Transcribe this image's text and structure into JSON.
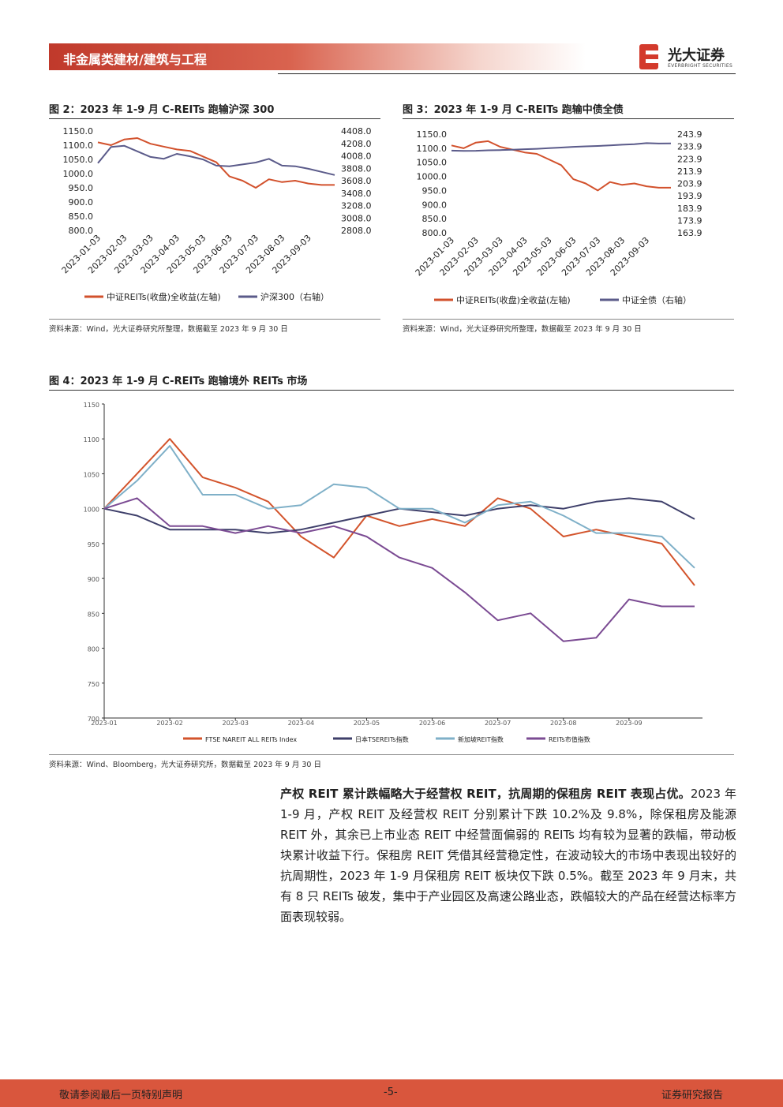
{
  "header": {
    "section": "非金属类建材/建筑与工程",
    "brand": "光大证券",
    "brand_en": "EVERBRIGHT SECURITIES"
  },
  "chart_data": [
    {
      "type": "line",
      "title": "图 2：2023 年 1-9 月 C-REITs 跑输沪深 300",
      "source": "资料来源：Wind，光大证券研究所整理，数据截至 2023 年 9 月 30 日",
      "categories": [
        "2023-01-03",
        null,
        "2023-02-03",
        null,
        "2023-03-03",
        null,
        "2023-04-03",
        null,
        "2023-05-03",
        null,
        "2023-06-03",
        null,
        "2023-07-03",
        null,
        "2023-08-03",
        null,
        "2023-09-03",
        null,
        null
      ],
      "series": [
        {
          "name": "中证REITs(收盘)全收益(左轴)",
          "color": "#d2512c",
          "values": [
            1110,
            1100,
            1120,
            1125,
            1105,
            1095,
            1085,
            1080,
            1060,
            1040,
            990,
            975,
            950,
            980,
            970,
            975,
            965,
            960,
            960
          ]
        },
        {
          "name": "沪深300（右轴）",
          "color": "#5b5b8a",
          "axis": "y2",
          "values": [
            3890,
            4150,
            4170,
            4080,
            3990,
            3960,
            4040,
            4000,
            3950,
            3850,
            3840,
            3870,
            3900,
            3960,
            3850,
            3840,
            3800,
            3750,
            3700
          ]
        }
      ],
      "ylim": [
        800,
        1150
      ],
      "yticks": [
        {
          "value": 800,
          "label": "800.0"
        },
        {
          "value": 850,
          "label": "850.0"
        },
        {
          "value": 900,
          "label": "900.0"
        },
        {
          "value": 950,
          "label": "950.0"
        },
        {
          "value": 1000,
          "label": "1000.0"
        },
        {
          "value": 1050,
          "label": "1050.0"
        },
        {
          "value": 1100,
          "label": "1100.0"
        },
        {
          "value": 1150,
          "label": "1150.0"
        }
      ],
      "y2lim": [
        2808,
        4408
      ],
      "y2ticks": [
        {
          "value": 2808,
          "label": "2808.0"
        },
        {
          "value": 3008,
          "label": "3008.0"
        },
        {
          "value": 3208,
          "label": "3208.0"
        },
        {
          "value": 3408,
          "label": "3408.0"
        },
        {
          "value": 3608,
          "label": "3608.0"
        },
        {
          "value": 3808,
          "label": "3808.0"
        },
        {
          "value": 4008,
          "label": "4008.0"
        },
        {
          "value": 4208,
          "label": "4208.0"
        },
        {
          "value": 4408,
          "label": "4408.0"
        }
      ],
      "grid": false
    },
    {
      "type": "line",
      "title": "图 3：2023 年 1-9 月 C-REITs 跑输中债全债",
      "source": "资料来源：Wind，光大证券研究所整理，数据截至 2023 年 9 月 30 日",
      "categories": [
        "2023-01-03",
        null,
        "2023-02-03",
        null,
        "2023-03-03",
        null,
        "2023-04-03",
        null,
        "2023-05-03",
        null,
        "2023-06-03",
        null,
        "2023-07-03",
        null,
        "2023-08-03",
        null,
        "2023-09-03",
        null,
        null
      ],
      "series": [
        {
          "name": "中证REITs(收盘)全收益(左轴)",
          "color": "#d2512c",
          "values": [
            1110,
            1100,
            1120,
            1125,
            1105,
            1095,
            1085,
            1080,
            1060,
            1040,
            990,
            975,
            950,
            980,
            970,
            975,
            965,
            960,
            960
          ]
        },
        {
          "name": "中证全债（右轴）",
          "color": "#5b5b8a",
          "axis": "y2",
          "values": [
            230.5,
            230.3,
            230.4,
            230.8,
            231.0,
            231.3,
            231.7,
            232.0,
            232.5,
            233.0,
            233.6,
            234.0,
            234.3,
            234.8,
            235.3,
            235.8,
            236.6,
            236.3,
            236.4
          ]
        }
      ],
      "ylim": [
        800,
        1150
      ],
      "yticks": [
        {
          "value": 800,
          "label": "800.0"
        },
        {
          "value": 850,
          "label": "850.0"
        },
        {
          "value": 900,
          "label": "900.0"
        },
        {
          "value": 950,
          "label": "950.0"
        },
        {
          "value": 1000,
          "label": "1000.0"
        },
        {
          "value": 1050,
          "label": "1050.0"
        },
        {
          "value": 1100,
          "label": "1100.0"
        },
        {
          "value": 1150,
          "label": "1150.0"
        }
      ],
      "y2lim": [
        163.9,
        243.9
      ],
      "y2ticks": [
        163.9,
        173.9,
        183.9,
        193.9,
        203.9,
        213.9,
        223.9,
        233.9,
        243.9
      ],
      "grid": false
    },
    {
      "type": "line",
      "title": "图 4：2023 年 1-9 月 C-REITs 跑输境外 REITs 市场",
      "source": "资料来源：Wind、Bloomberg，光大证券研究所，数据截至 2023 年 9 月 30 日",
      "categories": [
        "2023-01",
        null,
        "2023-02",
        null,
        "2023-03",
        null,
        "2023-04",
        null,
        "2023-05",
        null,
        "2023-06",
        null,
        "2023-07",
        null,
        "2023-08",
        null,
        "2023-09",
        null,
        null
      ],
      "series": [
        {
          "name": "FTSE NAREIT ALL REITs Index",
          "color": "#d3542c",
          "values": [
            1000,
            1050,
            1100,
            1045,
            1030,
            1010,
            960,
            930,
            990,
            975,
            985,
            975,
            1015,
            1000,
            960,
            970,
            960,
            950,
            890
          ]
        },
        {
          "name": "日本TSEREITs指数",
          "color": "#3e3f6a",
          "values": [
            1000,
            990,
            970,
            970,
            970,
            965,
            970,
            980,
            990,
            1000,
            995,
            990,
            1000,
            1005,
            1000,
            1010,
            1015,
            1010,
            985
          ]
        },
        {
          "name": "新加坡REIT指数",
          "color": "#7fb0c8",
          "values": [
            1000,
            1040,
            1090,
            1020,
            1020,
            1000,
            1005,
            1035,
            1030,
            1000,
            1000,
            980,
            1005,
            1010,
            990,
            965,
            965,
            960,
            915
          ]
        },
        {
          "name": "REITs市值指数",
          "color": "#7b4b93",
          "values": [
            1000,
            1015,
            975,
            975,
            965,
            975,
            965,
            975,
            960,
            930,
            915,
            880,
            840,
            850,
            810,
            815,
            870,
            860,
            860
          ]
        }
      ],
      "ylim": [
        700,
        1150
      ],
      "yticks": [
        700,
        750,
        800,
        850,
        900,
        950,
        1000,
        1050,
        1100,
        1150
      ],
      "grid": false
    }
  ],
  "body": {
    "lead": "产权 REIT 累计跌幅略大于经营权 REIT，抗周期的保租房 REIT 表现占优。",
    "text": "2023 年 1-9 月，产权 REIT 及经营权 REIT 分别累计下跌 10.2%及 9.8%，除保租房及能源 REIT 外，其余已上市业态 REIT 中经营面偏弱的 REITs 均有较为显著的跌幅，带动板块累计收益下行。保租房 REIT 凭借其经营稳定性，在波动较大的市场中表现出较好的抗周期性，2023 年 1-9 月保租房 REIT 板块仅下跌 0.5%。截至 2023 年 9 月末，共有 8 只 REITs 破发，集中于产业园区及高速公路业态，跌幅较大的产品在经营达标率方面表现较弱。"
  },
  "footer": {
    "left": "敬请参阅最后一页特别声明",
    "page": "-5-",
    "right": "证券研究报告"
  }
}
